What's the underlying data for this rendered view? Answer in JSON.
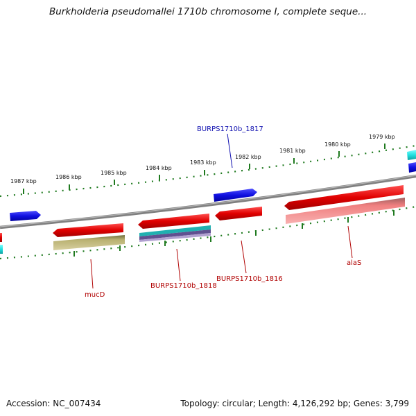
{
  "title": "Burkholderia pseudomallei 1710b chromosome I, complete seque...",
  "footer": {
    "accession": "Accession: NC_007434",
    "topology": "Topology: circular; Length: 4,126,292 bp; Genes: 3,799"
  },
  "colors": {
    "backbone": "#808080",
    "tick": "#1f7a1f",
    "forward_gene": "#1010e0",
    "reverse_gene": "#e00000",
    "reverse_cds": "#f08080",
    "mucD_cds": "#b8b070",
    "teal": "#20b0b0",
    "purple": "#605090",
    "cyan": "#20e0e0",
    "label_blue": "#1010b0",
    "label_red": "#b00000"
  },
  "ticks": [
    "1987 kbp",
    "1986 kbp",
    "1985 kbp",
    "1984 kbp",
    "1983 kbp",
    "1982 kbp",
    "1981 kbp",
    "1980 kbp",
    "1979 kbp"
  ],
  "labels": {
    "BURPS1710b_1817": "BURPS1710b_1817",
    "mucD": "mucD",
    "BURPS1710b_1818": "BURPS1710b_1818",
    "BURPS1710b_1816": "BURPS1710b_1816",
    "alaS": "alaS"
  }
}
